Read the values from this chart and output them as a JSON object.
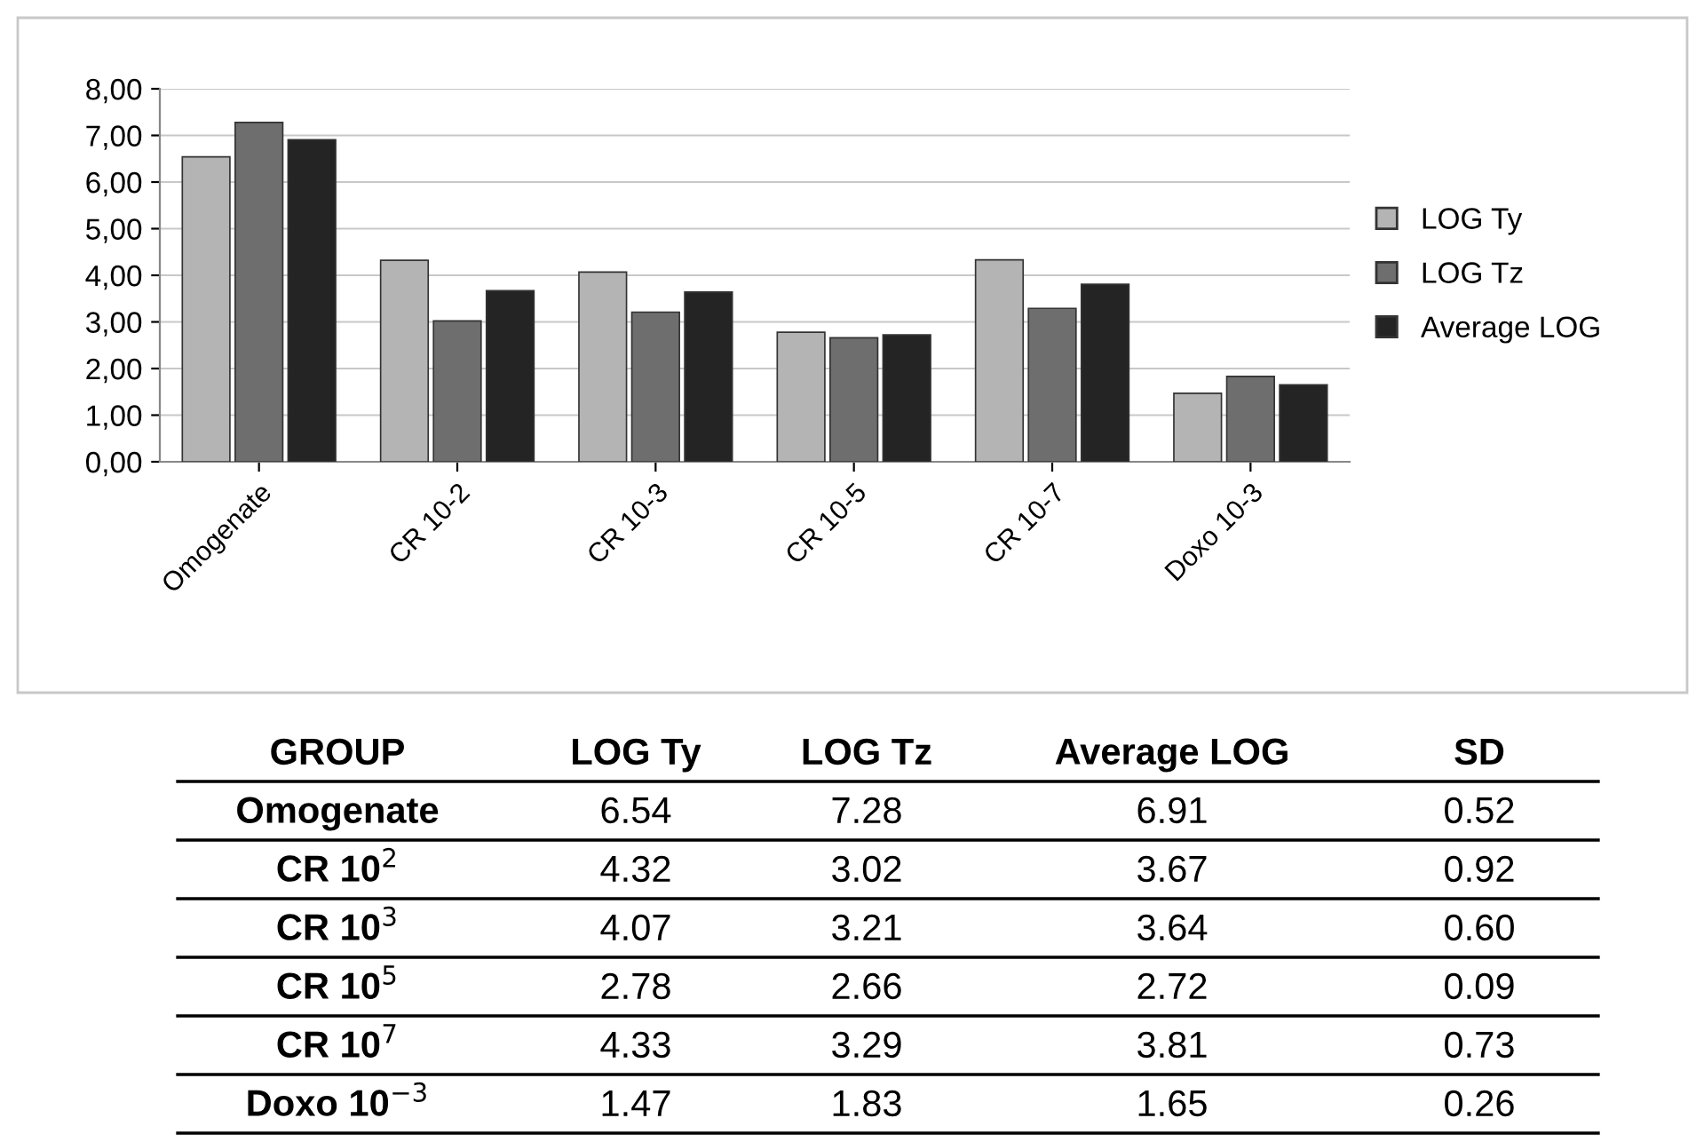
{
  "chart_data": {
    "type": "bar",
    "categories": [
      "Omogenate",
      "CR 10-2",
      "CR 10-3",
      "CR 10-5",
      "CR 10-7",
      "Doxo 10-3"
    ],
    "series": [
      {
        "name": "LOG Ty",
        "color": "#b4b4b4",
        "values": [
          6.54,
          4.32,
          4.07,
          2.78,
          4.33,
          1.47
        ]
      },
      {
        "name": "LOG Tz",
        "color": "#6e6e6e",
        "values": [
          7.28,
          3.02,
          3.21,
          2.66,
          3.29,
          1.83
        ]
      },
      {
        "name": "Average LOG",
        "color": "#242424",
        "values": [
          6.91,
          3.67,
          3.64,
          2.72,
          3.81,
          1.65
        ]
      }
    ],
    "ylim": [
      0,
      8
    ],
    "yticks": [
      {
        "value": 0,
        "label": "0,00"
      },
      {
        "value": 1,
        "label": "1,00"
      },
      {
        "value": 2,
        "label": "2,00"
      },
      {
        "value": 3,
        "label": "3,00"
      },
      {
        "value": 4,
        "label": "4,00"
      },
      {
        "value": 5,
        "label": "5,00"
      },
      {
        "value": 6,
        "label": "6,00"
      },
      {
        "value": 7,
        "label": "7,00"
      },
      {
        "value": 8,
        "label": "8,00"
      }
    ],
    "grid": "y",
    "legend": "right",
    "annotations": [
      "GROUP",
      "LOG Ty",
      "LOG Tz",
      "Average LOG",
      "SD",
      "Omogenate",
      "6.54",
      "7.28",
      "6.91",
      "0.52",
      "CR 10$^{2}$",
      "4.32",
      "3.02",
      "3.67",
      "0.92",
      "CR 10$^{3}$",
      "4.07",
      "3.21",
      "3.64",
      "0.60",
      "CR 10$^{5}$",
      "2.78",
      "2.66",
      "2.72",
      "0.09",
      "CR 10$^{7}$",
      "4.33",
      "3.29",
      "3.81",
      "0.73",
      "Doxo 10$^{−3}$",
      "1.47",
      "1.83",
      "1.65",
      "0.26"
    ]
  }
}
